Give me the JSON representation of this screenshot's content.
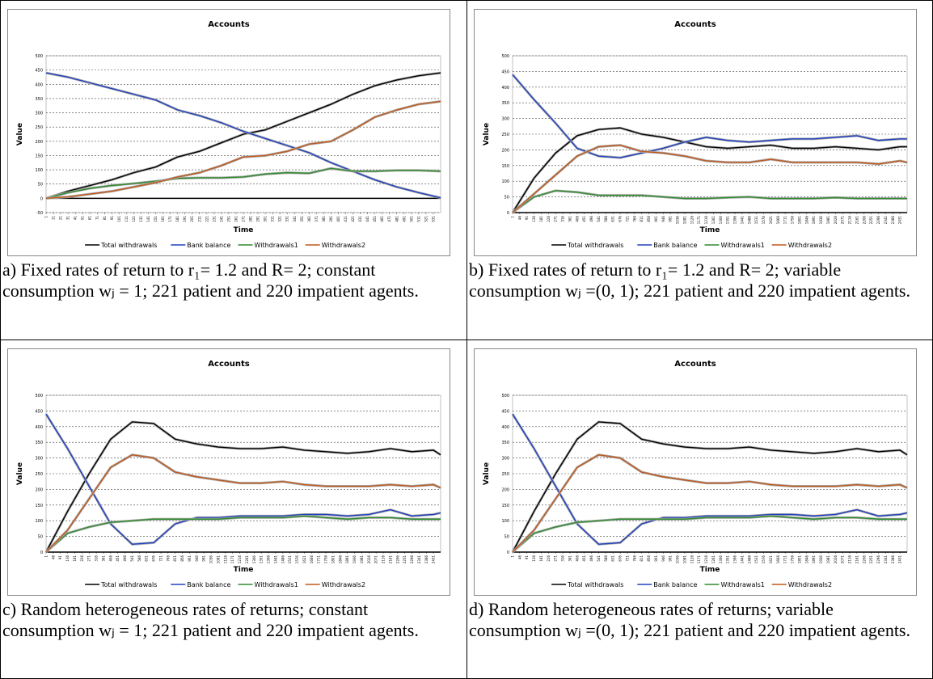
{
  "chart_data": [
    {
      "type": "line",
      "title": "Accounts",
      "x_label": "Time",
      "y_label": "Value",
      "xlim": [
        1,
        541
      ],
      "ylim": [
        -50,
        500
      ],
      "grid": true,
      "legend": "bottom",
      "yticks": [
        -50,
        0,
        50,
        100,
        150,
        200,
        250,
        300,
        350,
        400,
        450,
        500
      ],
      "xticks": [
        1,
        11,
        21,
        31,
        41,
        51,
        61,
        71,
        81,
        91,
        101,
        111,
        121,
        131,
        141,
        151,
        161,
        171,
        181,
        191,
        201,
        211,
        221,
        231,
        241,
        251,
        261,
        271,
        281,
        291,
        301,
        311,
        321,
        331,
        341,
        351,
        361,
        371,
        381,
        391,
        401,
        411,
        421,
        431,
        441,
        451,
        461,
        471,
        481,
        491,
        501,
        511,
        521,
        531
      ],
      "x": [
        1,
        31,
        61,
        91,
        121,
        151,
        181,
        211,
        241,
        271,
        301,
        331,
        361,
        391,
        421,
        451,
        481,
        511,
        541
      ],
      "series": [
        {
          "name": "Total withdrawals",
          "color": "#000000",
          "values": [
            0,
            25,
            45,
            65,
            90,
            110,
            145,
            165,
            195,
            225,
            240,
            270,
            300,
            330,
            365,
            395,
            415,
            430,
            440
          ]
        },
        {
          "name": "Bank balance",
          "color": "#2040c0",
          "values": [
            440,
            425,
            405,
            385,
            365,
            345,
            310,
            290,
            265,
            235,
            210,
            185,
            160,
            125,
            95,
            65,
            40,
            20,
            2
          ]
        },
        {
          "name": "Withdrawals1",
          "color": "#2e8b2e",
          "values": [
            0,
            20,
            35,
            45,
            52,
            60,
            70,
            72,
            72,
            75,
            85,
            90,
            88,
            105,
            95,
            95,
            98,
            98,
            95
          ]
        },
        {
          "name": "Withdrawals2",
          "color": "#c0581a",
          "values": [
            0,
            5,
            15,
            25,
            40,
            55,
            75,
            90,
            115,
            145,
            150,
            165,
            190,
            200,
            240,
            285,
            310,
            330,
            340
          ]
        }
      ]
    },
    {
      "type": "line",
      "title": "Accounts",
      "x_label": "Time",
      "y_label": "Value",
      "xlim": [
        1,
        2476
      ],
      "ylim": [
        0,
        500
      ],
      "grid": true,
      "legend": "bottom",
      "yticks": [
        0,
        50,
        100,
        150,
        200,
        250,
        300,
        350,
        400,
        450,
        500
      ],
      "xticks": [
        1,
        46,
        91,
        136,
        181,
        226,
        271,
        316,
        361,
        406,
        451,
        496,
        541,
        586,
        631,
        676,
        721,
        766,
        811,
        856,
        901,
        946,
        991,
        1036,
        1081,
        1126,
        1171,
        1216,
        1261,
        1306,
        1351,
        1396,
        1441,
        1486,
        1531,
        1576,
        1621,
        1666,
        1711,
        1756,
        1801,
        1846,
        1891,
        1936,
        1981,
        2026,
        2071,
        2116,
        2161,
        2206,
        2251,
        2296,
        2341,
        2386,
        2431
      ],
      "x": [
        1,
        136,
        271,
        406,
        541,
        676,
        811,
        946,
        1081,
        1216,
        1351,
        1486,
        1621,
        1756,
        1891,
        2026,
        2161,
        2296,
        2431,
        2476
      ],
      "series": [
        {
          "name": "Total withdrawals",
          "color": "#000000",
          "values": [
            0,
            110,
            190,
            245,
            265,
            270,
            250,
            240,
            225,
            210,
            205,
            210,
            215,
            205,
            205,
            210,
            205,
            200,
            210,
            210
          ]
        },
        {
          "name": "Bank balance",
          "color": "#2040c0",
          "values": [
            440,
            360,
            285,
            205,
            180,
            175,
            190,
            205,
            225,
            240,
            230,
            225,
            230,
            235,
            235,
            240,
            245,
            230,
            235,
            235
          ]
        },
        {
          "name": "Withdrawals1",
          "color": "#2e8b2e",
          "values": [
            0,
            50,
            70,
            65,
            55,
            55,
            55,
            50,
            45,
            45,
            48,
            50,
            45,
            45,
            45,
            48,
            45,
            45,
            45,
            45
          ]
        },
        {
          "name": "Withdrawals2",
          "color": "#c0581a",
          "values": [
            0,
            60,
            120,
            180,
            210,
            215,
            195,
            190,
            180,
            165,
            160,
            160,
            170,
            160,
            160,
            160,
            160,
            155,
            165,
            160
          ]
        }
      ]
    },
    {
      "type": "line",
      "title": "Accounts",
      "x_label": "Time",
      "y_label": "Value",
      "xlim": [
        1,
        2476
      ],
      "ylim": [
        0,
        500
      ],
      "grid": true,
      "legend": "bottom",
      "yticks": [
        0,
        50,
        100,
        150,
        200,
        250,
        300,
        350,
        400,
        450,
        500
      ],
      "xticks": [
        1,
        46,
        91,
        136,
        181,
        226,
        271,
        316,
        361,
        406,
        451,
        496,
        541,
        586,
        631,
        676,
        721,
        766,
        811,
        856,
        901,
        946,
        991,
        1036,
        1081,
        1126,
        1171,
        1216,
        1261,
        1306,
        1351,
        1396,
        1441,
        1486,
        1531,
        1576,
        1621,
        1666,
        1711,
        1756,
        1801,
        1846,
        1891,
        1936,
        1981,
        2026,
        2071,
        2116,
        2161,
        2206,
        2251,
        2296,
        2341,
        2386,
        2431
      ],
      "x": [
        1,
        136,
        271,
        406,
        541,
        676,
        811,
        946,
        1081,
        1216,
        1351,
        1486,
        1621,
        1756,
        1891,
        2026,
        2161,
        2296,
        2431,
        2476
      ],
      "series": [
        {
          "name": "Total withdrawals",
          "color": "#000000",
          "values": [
            0,
            130,
            250,
            360,
            415,
            410,
            360,
            345,
            335,
            330,
            330,
            335,
            325,
            320,
            315,
            320,
            330,
            320,
            325,
            310
          ]
        },
        {
          "name": "Bank balance",
          "color": "#2040c0",
          "values": [
            440,
            330,
            210,
            90,
            25,
            30,
            90,
            110,
            110,
            115,
            115,
            115,
            120,
            120,
            115,
            120,
            135,
            115,
            120,
            125
          ]
        },
        {
          "name": "Withdrawals1",
          "color": "#2e8b2e",
          "values": [
            0,
            60,
            80,
            95,
            100,
            105,
            105,
            105,
            105,
            110,
            110,
            110,
            115,
            110,
            105,
            110,
            110,
            105,
            105,
            105
          ]
        },
        {
          "name": "Withdrawals2",
          "color": "#c0581a",
          "values": [
            0,
            70,
            170,
            270,
            310,
            300,
            255,
            240,
            230,
            220,
            220,
            225,
            215,
            210,
            210,
            210,
            215,
            210,
            215,
            205
          ]
        }
      ]
    },
    {
      "type": "line",
      "title": "Accounts",
      "x_label": "Time",
      "y_label": "Value",
      "xlim": [
        1,
        2476
      ],
      "ylim": [
        0,
        500
      ],
      "grid": true,
      "legend": "bottom",
      "yticks": [
        0,
        50,
        100,
        150,
        200,
        250,
        300,
        350,
        400,
        450,
        500
      ],
      "xticks": [
        1,
        46,
        91,
        136,
        181,
        226,
        271,
        316,
        361,
        406,
        451,
        496,
        541,
        586,
        631,
        676,
        721,
        766,
        811,
        856,
        901,
        946,
        991,
        1036,
        1081,
        1126,
        1171,
        1216,
        1261,
        1306,
        1351,
        1396,
        1441,
        1486,
        1531,
        1576,
        1621,
        1666,
        1711,
        1756,
        1801,
        1846,
        1891,
        1936,
        1981,
        2026,
        2071,
        2116,
        2161,
        2206,
        2251,
        2296,
        2341,
        2386,
        2431
      ],
      "x": [
        1,
        136,
        271,
        406,
        541,
        676,
        811,
        946,
        1081,
        1216,
        1351,
        1486,
        1621,
        1756,
        1891,
        2026,
        2161,
        2296,
        2431,
        2476
      ],
      "series": [
        {
          "name": "Total withdrawals",
          "color": "#000000",
          "values": [
            0,
            130,
            250,
            360,
            415,
            410,
            360,
            345,
            335,
            330,
            330,
            335,
            325,
            320,
            315,
            320,
            330,
            320,
            325,
            310
          ]
        },
        {
          "name": "Bank balance",
          "color": "#2040c0",
          "values": [
            440,
            330,
            210,
            90,
            25,
            30,
            90,
            110,
            110,
            115,
            115,
            115,
            120,
            120,
            115,
            120,
            135,
            115,
            120,
            125
          ]
        },
        {
          "name": "Withdrawals1",
          "color": "#2e8b2e",
          "values": [
            0,
            60,
            80,
            95,
            100,
            105,
            105,
            105,
            105,
            110,
            110,
            110,
            115,
            110,
            105,
            110,
            110,
            105,
            105,
            105
          ]
        },
        {
          "name": "Withdrawals2",
          "color": "#c0581a",
          "values": [
            0,
            70,
            170,
            270,
            310,
            300,
            255,
            240,
            230,
            220,
            220,
            225,
            215,
            210,
            210,
            210,
            215,
            210,
            215,
            205
          ]
        }
      ]
    }
  ],
  "captions": [
    "a) Fixed rates of return to r₁= 1.2 and R= 2; constant consumption wⱼ = 1; 221 patient and 220 impatient agents.",
    "b) Fixed rates of return to r₁= 1.2 and R= 2; variable consumption wⱼ =(0, 1); 221 patient and 220 impatient agents.",
    "c) Random heterogeneous rates of returns; constant consumption wⱼ = 1; 221 patient and 220 impatient agents.",
    "d) Random heterogeneous rates of returns; variable consumption wⱼ =(0, 1); 221 patient and 220 impatient agents."
  ]
}
